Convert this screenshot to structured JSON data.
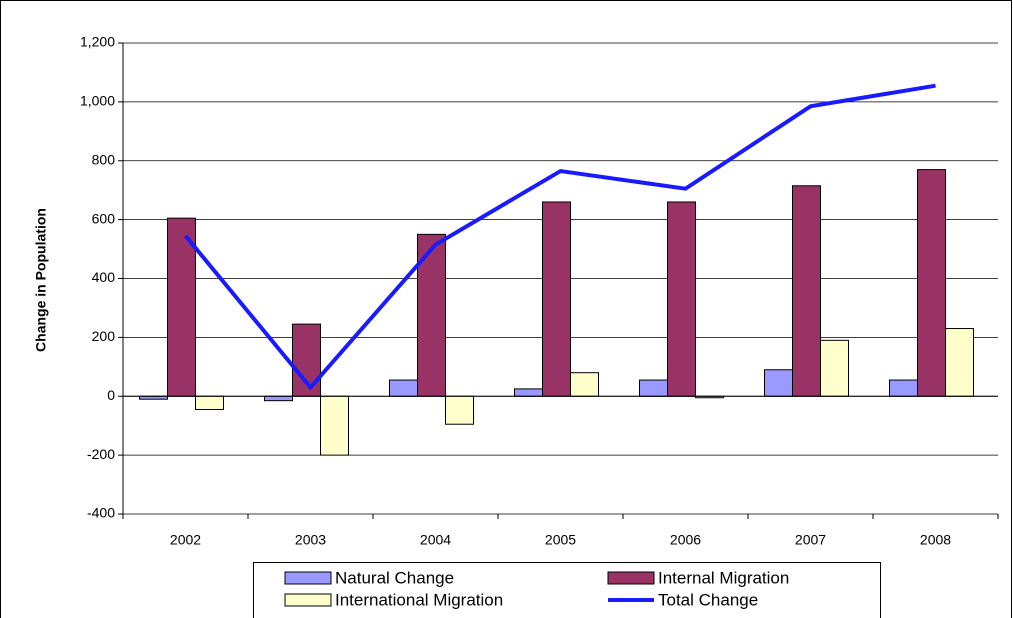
{
  "chart_data": {
    "type": "bar",
    "y_label": "Change in Population",
    "categories": [
      "2002",
      "2003",
      "2004",
      "2005",
      "2006",
      "2007",
      "2008"
    ],
    "series": [
      {
        "name": "Natural Change",
        "color": "#9999ff",
        "type": "bar",
        "values": [
          -10,
          -15,
          55,
          25,
          55,
          90,
          55
        ]
      },
      {
        "name": "Internal Migration",
        "color": "#993366",
        "type": "bar",
        "values": [
          605,
          245,
          550,
          660,
          660,
          715,
          770
        ]
      },
      {
        "name": "International Migration",
        "color": "#ffffcc",
        "type": "bar",
        "values": [
          -45,
          -200,
          -95,
          80,
          -5,
          190,
          230
        ]
      },
      {
        "name": "Total Change",
        "color": "#1a1aff",
        "type": "line",
        "values": [
          545,
          30,
          515,
          765,
          705,
          985,
          1055
        ]
      }
    ],
    "ylim": [
      -400,
      1200
    ],
    "yticks": [
      -400,
      -200,
      0,
      200,
      400,
      600,
      800,
      {
        "value": 1000,
        "label": "1,000"
      },
      {
        "value": 1200,
        "label": "1,200"
      }
    ],
    "grid": true,
    "legend": "bottom"
  }
}
